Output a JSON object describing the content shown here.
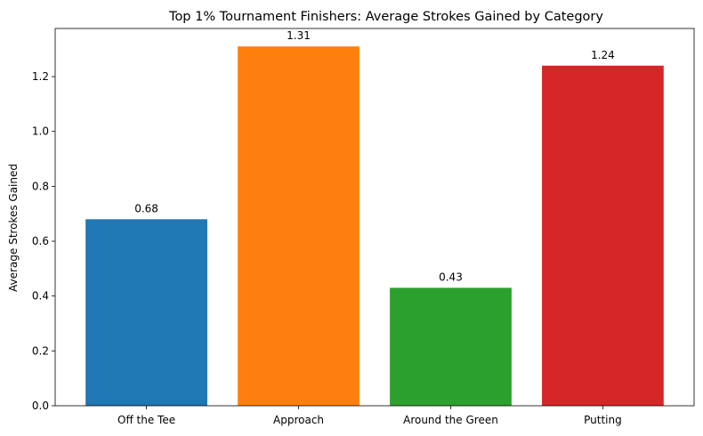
{
  "chart_data": {
    "type": "bar",
    "title": "Top 1% Tournament Finishers: Average Strokes Gained by Category",
    "xlabel": "",
    "ylabel": "Average Strokes Gained",
    "categories": [
      "Off the Tee",
      "Approach",
      "Around the Green",
      "Putting"
    ],
    "values": [
      0.68,
      1.31,
      0.43,
      1.24
    ],
    "data_labels": [
      "0.68",
      "1.31",
      "0.43",
      "1.24"
    ],
    "colors": [
      "#1f77b4",
      "#ff7f0e",
      "#2ca02c",
      "#d62728"
    ],
    "ylim": [
      0,
      1.3755
    ],
    "yticks": [
      0.0,
      0.2,
      0.4,
      0.6,
      0.8,
      1.0,
      1.2
    ],
    "ytick_labels": [
      "0.0",
      "0.2",
      "0.4",
      "0.6",
      "0.8",
      "1.0",
      "1.2"
    ],
    "grid": false,
    "legend": "none"
  }
}
